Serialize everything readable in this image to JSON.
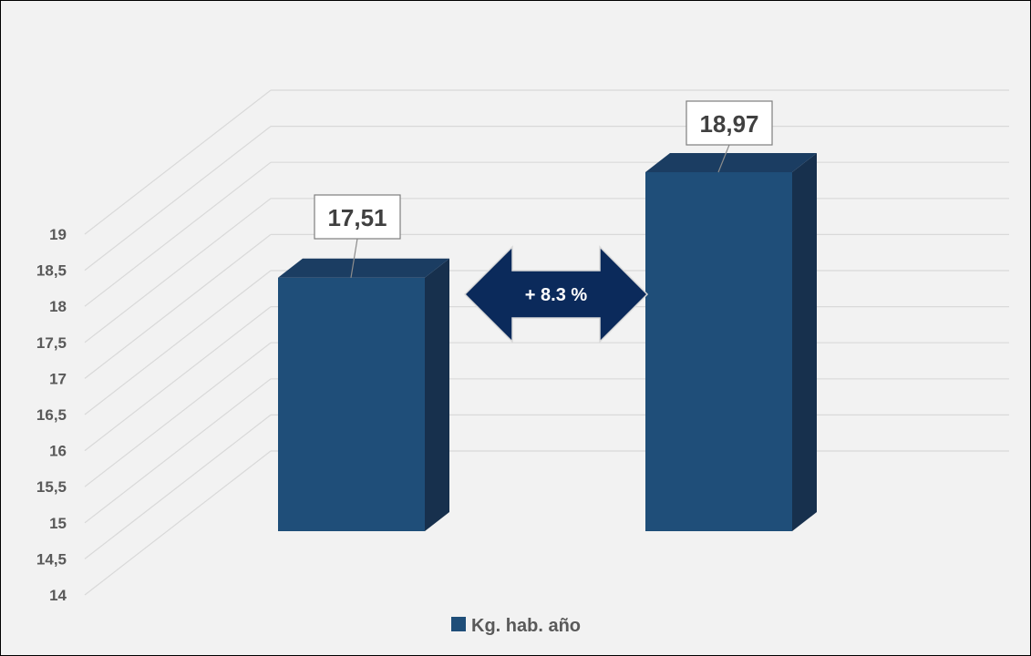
{
  "chart_data": {
    "type": "bar",
    "categories": [
      "",
      ""
    ],
    "series": [
      {
        "name": "Kg. hab. año",
        "values": [
          17.51,
          18.97
        ]
      }
    ],
    "data_labels": [
      "17,51",
      "18,97"
    ],
    "ylim": [
      14,
      19
    ],
    "y_ticks": [
      "14",
      "14,5",
      "15",
      "15,5",
      "16",
      "16,5",
      "17",
      "17,5",
      "18",
      "18,5",
      "19"
    ],
    "annotation": "+ 8.3 %",
    "legend_position": "bottom",
    "grid": true,
    "style": "3d-column"
  },
  "colors": {
    "bar_front": "#1f4e79",
    "bar_side": "#17304d",
    "bar_top": "#1b3d62",
    "arrow_fill": "#0b2a5b",
    "gridline": "#d9d9d9",
    "background": "#f2f2f2"
  }
}
